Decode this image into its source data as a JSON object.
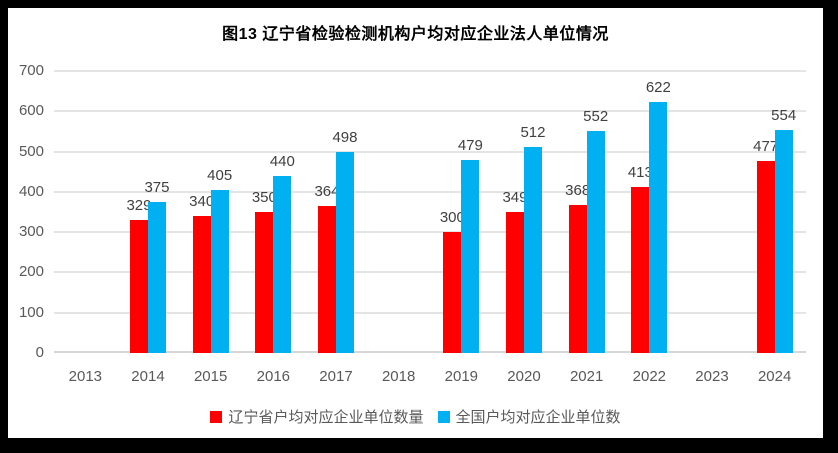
{
  "title": "图13 辽宁省检验检测机构户均对应企业法人单位情况",
  "colors": {
    "liaoning_red": "#FF0000",
    "national_blue": "#00B0F0",
    "axis_text": "#595959",
    "data_label": "#404040",
    "gridline": "#E4E4E4",
    "baseline": "#D6D6D6",
    "frame": "#000000",
    "background": "#FFFFFF"
  },
  "chart_data": {
    "type": "bar",
    "title": "图13 辽宁省检验检测机构户均对应企业法人单位情况",
    "categories": [
      "2013",
      "2014",
      "2015",
      "2016",
      "2017",
      "2018",
      "2019",
      "2020",
      "2021",
      "2022",
      "2023",
      "2024"
    ],
    "series": [
      {
        "key": "liaoning",
        "name": "辽宁省户均对应企业单位数量",
        "color": "#FF0000",
        "values": [
          null,
          329,
          340,
          350,
          364,
          null,
          300,
          349,
          368,
          413,
          null,
          477
        ]
      },
      {
        "key": "national",
        "name": "全国户均对应企业单位数",
        "color": "#00B0F0",
        "values": [
          null,
          375,
          405,
          440,
          498,
          null,
          479,
          512,
          552,
          622,
          null,
          554
        ]
      }
    ],
    "xlabel": "",
    "ylabel": "",
    "ylim": [
      0,
      700
    ],
    "yticks": [
      0,
      100,
      200,
      300,
      400,
      500,
      600,
      700
    ],
    "grid": true,
    "data_labels": true,
    "legend_position": "bottom"
  }
}
